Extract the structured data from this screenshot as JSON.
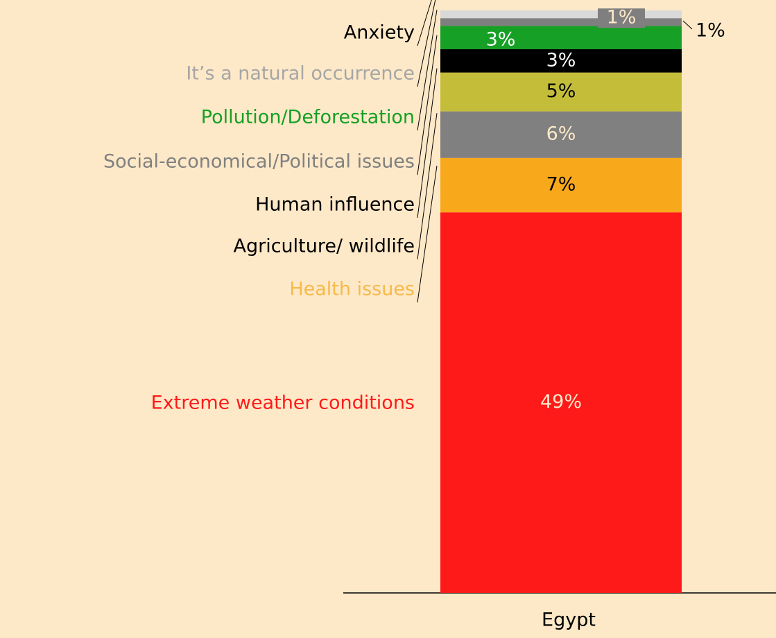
{
  "chart_data": {
    "type": "stacked_bar",
    "categories": [
      "Egypt"
    ],
    "series": [
      {
        "name": "Extreme weather conditions",
        "color": "#ff1a1a",
        "label_color": "#ff1a1a",
        "value_color": "#fde9c8",
        "values": [
          49
        ],
        "value_labels": [
          "49%"
        ]
      },
      {
        "name": "Health issues",
        "color": "#f8a81b",
        "label_color": "#f7b94a",
        "value_color": "#000000",
        "values": [
          7
        ],
        "value_labels": [
          "7%"
        ]
      },
      {
        "name": "Agriculture/ wildlife",
        "color": "#808080",
        "label_color": "#000000",
        "value_color": "#fde9c8",
        "values": [
          6
        ],
        "value_labels": [
          "6%"
        ]
      },
      {
        "name": "Human influence",
        "color": "#c4bd3a",
        "label_color": "#000000",
        "value_color": "#000000",
        "values": [
          5
        ],
        "value_labels": [
          "5%"
        ]
      },
      {
        "name": "Social-economical/Political issues",
        "color": "#000000",
        "label_color": "#808080",
        "value_color": "#ffffff",
        "values": [
          3
        ],
        "value_labels": [
          "3%"
        ]
      },
      {
        "name": "Pollution/Deforestation",
        "color": "#16a025",
        "label_color": "#16a025",
        "value_color": "#ffffff",
        "values": [
          3
        ],
        "value_labels": [
          "3%"
        ]
      },
      {
        "name": "It’s a natural occurrence",
        "color": "#7f7f7f",
        "label_color": "#a6a6a6",
        "value_color": "#fde9c8",
        "values": [
          1
        ],
        "value_labels": [
          "1%"
        ]
      },
      {
        "name": "Anxiety",
        "color": "#d9d9d9",
        "label_color": "#000000",
        "value_color": "#000000",
        "values": [
          1
        ],
        "value_labels": [
          "1%"
        ]
      }
    ]
  }
}
